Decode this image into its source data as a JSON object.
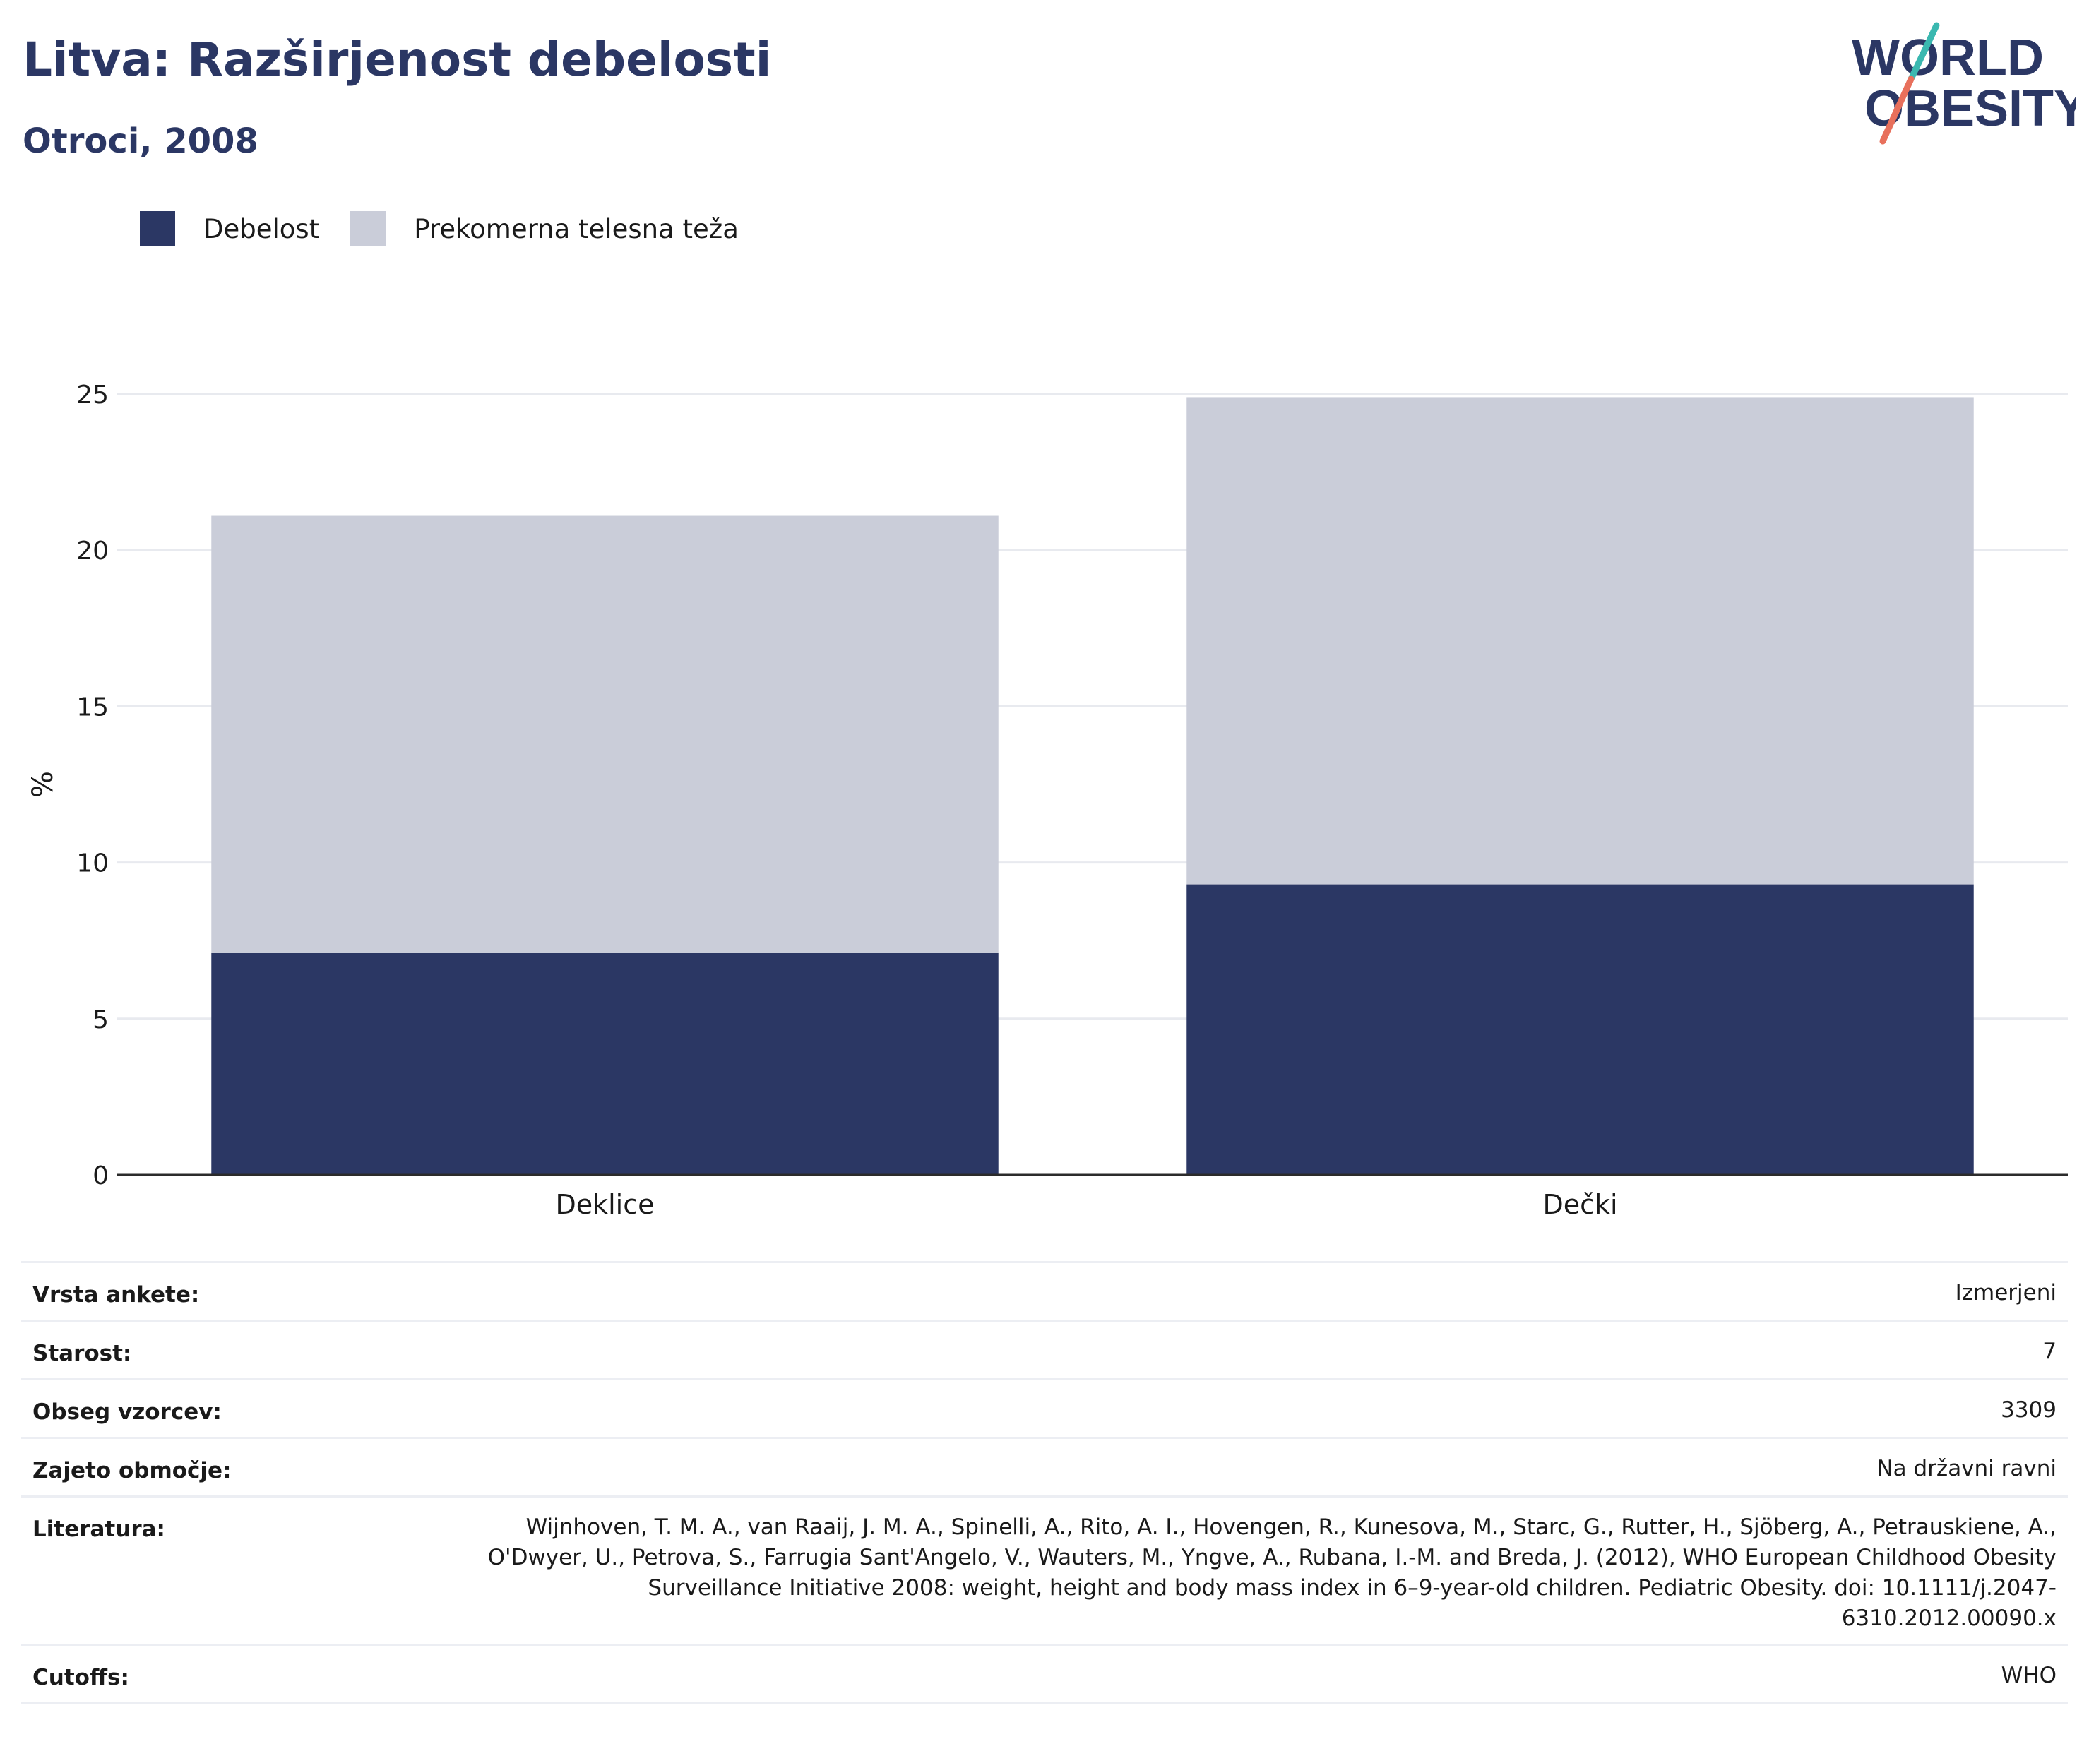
{
  "header": {
    "title": "Litva: Razširjenost debelosti",
    "subtitle": "Otroci, 2008"
  },
  "logo": {
    "line1": "WORLD",
    "line2": "OBESITY"
  },
  "legend": [
    {
      "label": "Debelost",
      "color": "#2b3764"
    },
    {
      "label": "Prekomerna telesna teža",
      "color": "#cacdd9"
    }
  ],
  "chart_data": {
    "type": "bar",
    "stacked": true,
    "categories": [
      "Deklice",
      "Dečki"
    ],
    "series": [
      {
        "name": "Debelost",
        "color": "#2b3764",
        "values": [
          7.1,
          9.3
        ]
      },
      {
        "name": "Prekomerna telesna teža",
        "color": "#cacdd9",
        "values": [
          14.0,
          15.6
        ]
      }
    ],
    "ylabel": "%",
    "ylim": [
      0,
      25
    ],
    "yticks": [
      0,
      5,
      10,
      15,
      20,
      25
    ],
    "grid": true,
    "legend_position": "top-left"
  },
  "meta": [
    {
      "key": "Vrsta ankete:",
      "value": "Izmerjeni"
    },
    {
      "key": "Starost:",
      "value": "7"
    },
    {
      "key": "Obseg vzorcev:",
      "value": "3309"
    },
    {
      "key": "Zajeto območje:",
      "value": "Na državni ravni"
    },
    {
      "key": "Literatura:",
      "value": "Wijnhoven, T. M. A., van Raaij, J. M. A., Spinelli, A., Rito, A. I., Hovengen, R., Kunesova, M., Starc, G., Rutter, H., Sjöberg, A., Petrauskiene, A., O'Dwyer, U., Petrova, S., Farrugia Sant'Angelo, V., Wauters, M., Yngve, A., Rubana, I.-M. and Breda, J. (2012), WHO European Childhood Obesity Surveillance Initiative 2008: weight, height and body mass index in 6–9-year-old children. Pediatric Obesity. doi: 10.1111/j.2047-6310.2012.00090.x"
    },
    {
      "key": "Cutoffs:",
      "value": "WHO"
    }
  ]
}
